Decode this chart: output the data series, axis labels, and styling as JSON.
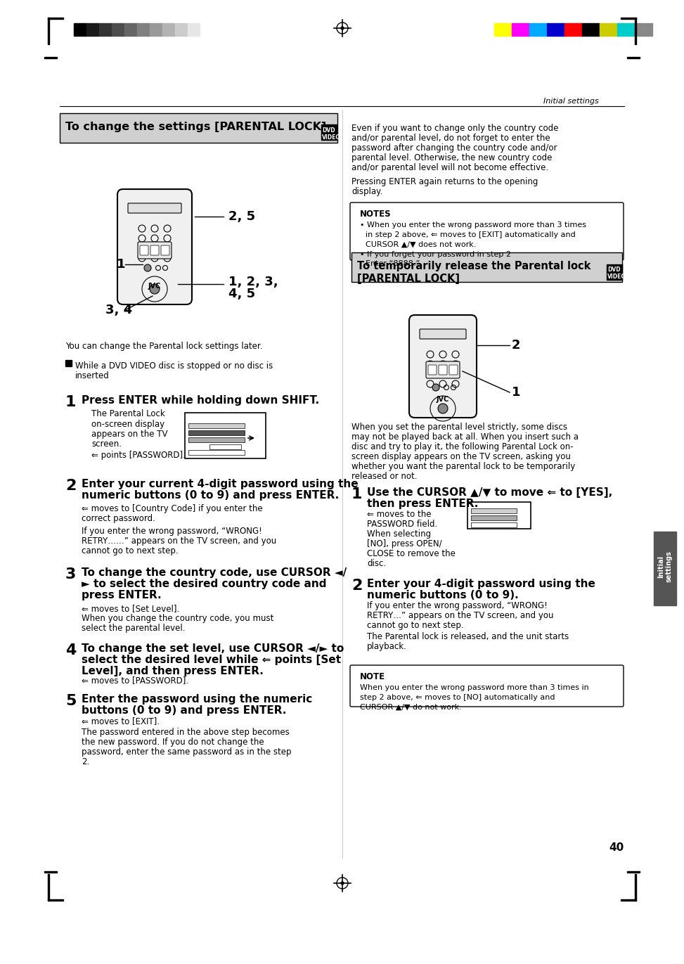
{
  "page_number": "40",
  "header_section_label": "Initial settings",
  "bg_color": "#ffffff",
  "left_section_title": "To change the settings [PARENTAL LOCK]",
  "right_section_title": "To temporarily release the Parental lock [PARENTAL LOCK]",
  "grayscale_colors": [
    "#000000",
    "#1a1a1a",
    "#333333",
    "#4d4d4d",
    "#666666",
    "#808080",
    "#999999",
    "#b3b3b3",
    "#cccccc",
    "#e6e6e6",
    "#ffffff"
  ],
  "color_bars": [
    "#ffff00",
    "#ff00ff",
    "#00aaff",
    "#0000cc",
    "#ff0000",
    "#000000",
    "#cccc00",
    "#00cccc",
    "#888888"
  ],
  "left_content": [
    "You can change the Parental lock settings later.",
    "■ While a DVD VIDEO disc is stopped or no disc is inserted",
    "1  Press ENTER while holding down SHIFT.",
    "The Parental Lock on-screen display appears on the TV screen.",
    "⇐ points [PASSWORD].",
    "2  Enter your current 4-digit password using the numeric buttons (0 to 9) and press ENTER.",
    "⇐ moves to [Country Code] if you enter the correct password.",
    "If you enter the wrong password, “WRONG! RETRY……” appears on the TV screen, and you cannot go to next step.",
    "3  To change the country code, use CURSOR ◄/► to select the desired country code and press ENTER.",
    "⇐ moves to [Set Level].",
    "When you change the country code, you must select the parental level.",
    "4  To change the set level, use CURSOR ◄/► to select the desired level while ⇐ points [Set Level], and then press ENTER.",
    "⇐ moves to [PASSWORD].",
    "5  Enter the password using the numeric buttons (0 to 9) and press ENTER.",
    "⇐ moves to [EXIT].",
    "The password entered in the above step becomes the new password. If you do not change the password, enter the same password as in the step 2."
  ],
  "right_notes_title": "NOTES",
  "right_notes": [
    "When you enter the wrong password more than 3 times in step 2 above, ⇐ moves to [EXIT] automatically and CURSOR ▲/▼ does not work.",
    "If you forget your password in step 2\nEnter ‘8888.’"
  ],
  "right_content_top": [
    "Even if you want to change only the country code and/or parental level, do not forget to enter the password after changing the country code and/or parental level. Otherwise, the new country code and/or parental level will not become effective.",
    "Pressing ENTER again returns to the opening display."
  ],
  "right_section_steps": [
    "1  Use the CURSOR ▲/▼ to move ⇐ to [YES], then press ENTER.",
    "⇐ moves to the PASSWORD field.",
    "When selecting [NO], press OPEN/CLOSE to remove the disc.",
    "2  Enter your 4-digit password using the numeric buttons (0 to 9).",
    "If you enter the wrong password, “WRONG! RETRY…” appears on the TV screen, and you cannot go to next step.",
    "The Parental lock is released, and the unit starts playback."
  ],
  "bottom_note_right": "When you enter the wrong password more than 3 times in step 2 above, ⇐ moves to [NO] automatically and CURSOR ▲/▼ do not work.",
  "tab_label": "Initial\nsettings"
}
